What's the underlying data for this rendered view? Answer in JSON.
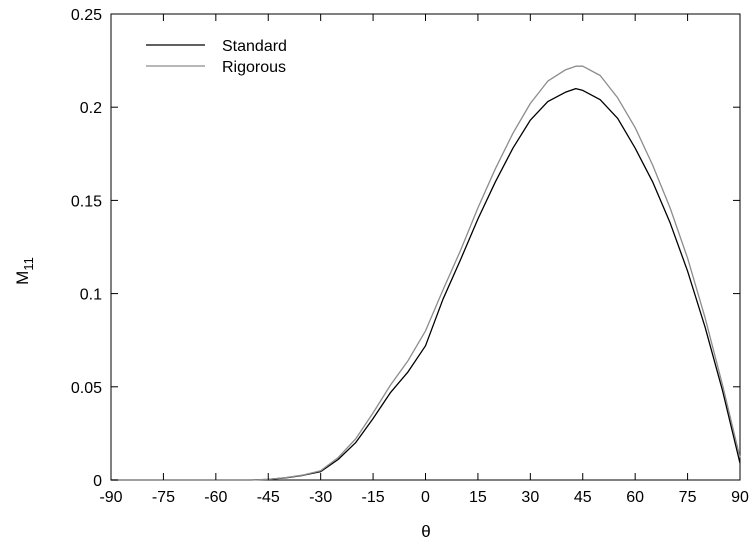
{
  "chart_data": {
    "type": "line",
    "xlabel": "θ",
    "ylabel": "M",
    "ylabel_subscript": "11",
    "xlim": [
      -90,
      90
    ],
    "ylim": [
      0,
      0.25
    ],
    "xticks": [
      -90,
      -75,
      -60,
      -45,
      -30,
      -15,
      0,
      15,
      30,
      45,
      60,
      75,
      90
    ],
    "yticks": [
      0,
      0.05,
      0.1,
      0.15,
      0.2,
      0.25
    ],
    "xtick_labels": [
      "-90",
      "-75",
      "-60",
      "-45",
      "-30",
      "-15",
      "0",
      "15",
      "30",
      "45",
      "60",
      "75",
      "90"
    ],
    "ytick_labels": [
      "0",
      "0.05",
      "0.1",
      "0.15",
      "0.2",
      "0.25"
    ],
    "grid": false,
    "legend_position": "top-left",
    "series": [
      {
        "name": "Standard",
        "color": "#000000",
        "x": [
          -90,
          -60,
          -50,
          -45,
          -40,
          -35,
          -30,
          -25,
          -20,
          -15,
          -10,
          -5,
          0,
          5,
          10,
          15,
          20,
          25,
          30,
          35,
          40,
          43,
          45,
          50,
          55,
          60,
          65,
          70,
          75,
          80,
          85,
          90
        ],
        "y": [
          0,
          0,
          0,
          0.0003,
          0.0012,
          0.0025,
          0.0045,
          0.011,
          0.02,
          0.033,
          0.047,
          0.058,
          0.072,
          0.097,
          0.118,
          0.14,
          0.16,
          0.178,
          0.193,
          0.203,
          0.208,
          0.21,
          0.209,
          0.204,
          0.194,
          0.178,
          0.16,
          0.138,
          0.112,
          0.082,
          0.048,
          0.009
        ]
      },
      {
        "name": "Rigorous",
        "color": "#8c8c8c",
        "x": [
          -90,
          -60,
          -50,
          -45,
          -40,
          -35,
          -30,
          -25,
          -20,
          -15,
          -10,
          -5,
          0,
          5,
          10,
          15,
          20,
          25,
          30,
          35,
          40,
          43,
          45,
          50,
          55,
          60,
          65,
          70,
          75,
          80,
          85,
          90
        ],
        "y": [
          0,
          0,
          0,
          0.0003,
          0.0013,
          0.0027,
          0.005,
          0.012,
          0.022,
          0.036,
          0.051,
          0.064,
          0.08,
          0.102,
          0.123,
          0.146,
          0.167,
          0.186,
          0.202,
          0.214,
          0.22,
          0.222,
          0.222,
          0.217,
          0.205,
          0.189,
          0.169,
          0.146,
          0.119,
          0.087,
          0.051,
          0.012
        ]
      }
    ]
  }
}
